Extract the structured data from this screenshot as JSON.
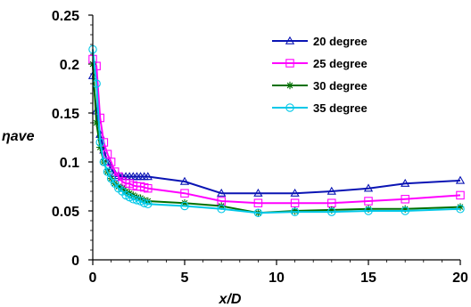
{
  "chart_data": {
    "type": "line",
    "xlabel": "x/D",
    "ylabel": "ηave",
    "xlim": [
      0,
      20
    ],
    "ylim": [
      0,
      0.25
    ],
    "xticks": [
      0,
      5,
      10,
      15,
      20
    ],
    "xtick_labels": [
      "0",
      "5",
      "10",
      "15",
      "20"
    ],
    "yticks": [
      0,
      0.05,
      0.1,
      0.15,
      0.2,
      0.25
    ],
    "ytick_labels": [
      "0",
      "0.05",
      "0.1",
      "0.15",
      "0.2",
      "0.25"
    ],
    "grid": false,
    "legend_position": "top-right",
    "series": [
      {
        "name": "20 degree",
        "color": "#0a14b4",
        "marker": "triangle",
        "x": [
          0,
          0.2,
          0.4,
          0.6,
          0.8,
          1.0,
          1.2,
          1.4,
          1.6,
          1.8,
          2.0,
          2.2,
          2.4,
          2.6,
          2.8,
          3.0,
          5,
          7,
          9,
          11,
          13,
          15,
          17,
          20
        ],
        "y": [
          0.188,
          0.152,
          0.128,
          0.112,
          0.1,
          0.093,
          0.088,
          0.086,
          0.085,
          0.085,
          0.085,
          0.085,
          0.085,
          0.085,
          0.085,
          0.085,
          0.08,
          0.068,
          0.068,
          0.068,
          0.07,
          0.073,
          0.078,
          0.081
        ]
      },
      {
        "name": "25 degree",
        "color": "#ff00ff",
        "marker": "square",
        "x": [
          0,
          0.2,
          0.4,
          0.6,
          0.8,
          1.0,
          1.2,
          1.4,
          1.6,
          1.8,
          2.0,
          2.2,
          2.4,
          2.6,
          2.8,
          3.0,
          5,
          7,
          9,
          11,
          13,
          15,
          17,
          20
        ],
        "y": [
          0.205,
          0.198,
          0.145,
          0.12,
          0.108,
          0.1,
          0.09,
          0.085,
          0.08,
          0.078,
          0.078,
          0.076,
          0.075,
          0.075,
          0.074,
          0.073,
          0.068,
          0.06,
          0.058,
          0.058,
          0.058,
          0.06,
          0.062,
          0.066
        ]
      },
      {
        "name": "30 degree",
        "color": "#007000",
        "marker": "asterisk",
        "x": [
          0,
          0.2,
          0.4,
          0.6,
          0.8,
          1.0,
          1.2,
          1.4,
          1.6,
          1.8,
          2.0,
          2.2,
          2.4,
          2.6,
          2.8,
          3.0,
          5,
          7,
          9,
          11,
          13,
          15,
          17,
          20
        ],
        "y": [
          0.2,
          0.14,
          0.115,
          0.1,
          0.09,
          0.083,
          0.078,
          0.075,
          0.073,
          0.07,
          0.068,
          0.066,
          0.064,
          0.063,
          0.061,
          0.06,
          0.058,
          0.055,
          0.048,
          0.05,
          0.051,
          0.052,
          0.052,
          0.054
        ]
      },
      {
        "name": "35 degree",
        "color": "#00c8e8",
        "marker": "circle",
        "x": [
          0,
          0.2,
          0.4,
          0.6,
          0.8,
          1.0,
          1.2,
          1.4,
          1.6,
          1.8,
          2.0,
          2.2,
          2.4,
          2.6,
          2.8,
          3.0,
          5,
          7,
          9,
          11,
          13,
          15,
          17,
          20
        ],
        "y": [
          0.215,
          0.18,
          0.12,
          0.1,
          0.09,
          0.083,
          0.078,
          0.073,
          0.07,
          0.066,
          0.064,
          0.062,
          0.061,
          0.06,
          0.058,
          0.057,
          0.055,
          0.052,
          0.048,
          0.049,
          0.049,
          0.05,
          0.05,
          0.052
        ]
      }
    ]
  }
}
